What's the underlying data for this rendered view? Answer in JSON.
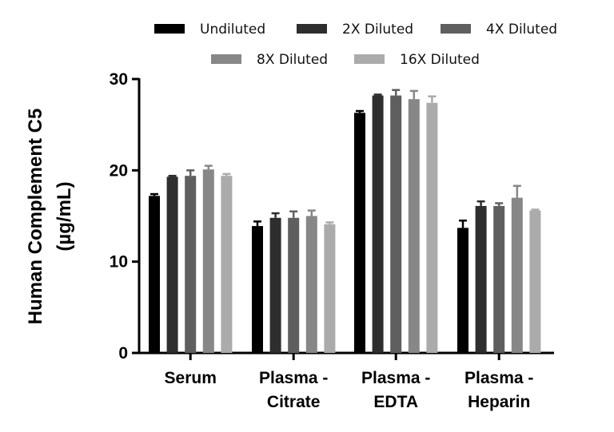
{
  "chart_data": {
    "type": "bar",
    "title": "",
    "xlabel": "",
    "ylabel_lines": [
      "Human Complement C5",
      "(µg/mL)"
    ],
    "ylim": [
      0,
      30
    ],
    "yticks": [
      "0",
      "10",
      "20",
      "30"
    ],
    "ytick_values": [
      0,
      10,
      20,
      30
    ],
    "categories": [
      [
        "Serum"
      ],
      [
        "Plasma -",
        "Citrate"
      ],
      [
        "Plasma -",
        "EDTA"
      ],
      [
        "Plasma -",
        "Heparin"
      ]
    ],
    "legend_position": "top",
    "grid": false,
    "series": [
      {
        "name": "Undiluted",
        "color": "#000000",
        "values": [
          17.2,
          13.9,
          26.3,
          13.7
        ],
        "errors": [
          0.2,
          0.5,
          0.2,
          0.8
        ]
      },
      {
        "name": "2X Diluted",
        "color": "#2e2e2e",
        "values": [
          19.3,
          14.8,
          28.2,
          16.1
        ],
        "errors": [
          0.1,
          0.5,
          0.1,
          0.5
        ]
      },
      {
        "name": "4X Diluted",
        "color": "#5f5f5f",
        "values": [
          19.4,
          14.8,
          28.2,
          16.1
        ],
        "errors": [
          0.6,
          0.7,
          0.6,
          0.3
        ]
      },
      {
        "name": "8X Diluted",
        "color": "#878787",
        "values": [
          20.1,
          15.0,
          27.8,
          17.0
        ],
        "errors": [
          0.4,
          0.6,
          0.9,
          1.3
        ]
      },
      {
        "name": "16X Diluted",
        "color": "#ababab",
        "values": [
          19.4,
          14.1,
          27.4,
          15.6
        ],
        "errors": [
          0.2,
          0.2,
          0.7,
          0.1
        ]
      }
    ]
  }
}
